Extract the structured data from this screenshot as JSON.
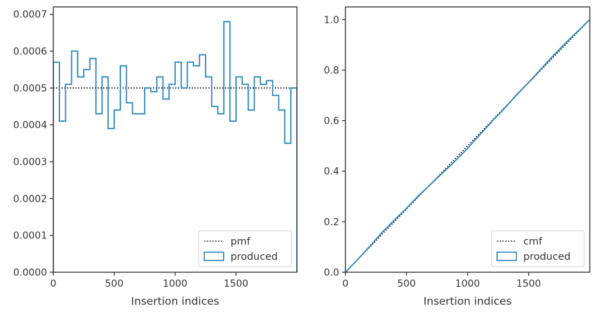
{
  "chart_data": [
    {
      "type": "step",
      "xlabel": "Insertion indices",
      "ylabel": "",
      "xlim": [
        0,
        2000
      ],
      "ylim": [
        0,
        0.00072
      ],
      "xticks": [
        0,
        500,
        1000,
        1500
      ],
      "xtick_labels": [
        "0",
        "500",
        "1000",
        "1500"
      ],
      "yticks": [
        0,
        0.0001,
        0.0002,
        0.0003,
        0.0004,
        0.0005,
        0.0006,
        0.0007
      ],
      "ytick_labels": [
        "0.0000",
        "0.0001",
        "0.0002",
        "0.0003",
        "0.0004",
        "0.0005",
        "0.0006",
        "0.0007"
      ],
      "grid": false,
      "legend": {
        "position": "lower-right",
        "entries": [
          "pmf",
          "produced"
        ]
      },
      "series": [
        {
          "name": "pmf",
          "style": "dotted",
          "color": "#000000",
          "x": [
            0,
            2000
          ],
          "y": [
            0.0005,
            0.0005
          ]
        },
        {
          "name": "produced",
          "style": "histogram-step",
          "color": "#2e86b8",
          "bin_width": 50,
          "bin_edges_start": 0,
          "values": [
            0.00057,
            0.00041,
            0.00051,
            0.0006,
            0.00053,
            0.00055,
            0.00058,
            0.00043,
            0.00053,
            0.00039,
            0.00044,
            0.00056,
            0.00046,
            0.00043,
            0.00043,
            0.0005,
            0.00049,
            0.00053,
            0.00047,
            0.00051,
            0.00057,
            0.0005,
            0.00057,
            0.00056,
            0.00059,
            0.00053,
            0.00045,
            0.00043,
            0.00068,
            0.00041,
            0.00053,
            0.00051,
            0.00044,
            0.00053,
            0.00051,
            0.00052,
            0.00048,
            0.00044,
            0.00035,
            0.0005
          ]
        }
      ]
    },
    {
      "type": "line",
      "xlabel": "Insertion indices",
      "ylabel": "",
      "xlim": [
        0,
        2000
      ],
      "ylim": [
        0,
        1.05
      ],
      "xticks": [
        0,
        500,
        1000,
        1500
      ],
      "xtick_labels": [
        "0",
        "500",
        "1000",
        "1500"
      ],
      "yticks": [
        0,
        0.2,
        0.4,
        0.6,
        0.8,
        1.0
      ],
      "ytick_labels": [
        "0.0",
        "0.2",
        "0.4",
        "0.6",
        "0.8",
        "1.0"
      ],
      "grid": false,
      "legend": {
        "position": "lower-right",
        "entries": [
          "cmf",
          "produced"
        ]
      },
      "series": [
        {
          "name": "cmf",
          "style": "dotted",
          "color": "#000000",
          "x": [
            0,
            2000
          ],
          "y": [
            0,
            1.0
          ]
        },
        {
          "name": "produced",
          "style": "solid",
          "color": "#2e86b8",
          "x": [
            0,
            100,
            200,
            300,
            400,
            500,
            600,
            700,
            800,
            900,
            1000,
            1100,
            1200,
            1300,
            1400,
            1500,
            1600,
            1700,
            1800,
            1900,
            2000
          ],
          "y": [
            0,
            0.05,
            0.103,
            0.158,
            0.206,
            0.253,
            0.304,
            0.349,
            0.395,
            0.441,
            0.49,
            0.544,
            0.597,
            0.647,
            0.702,
            0.751,
            0.804,
            0.857,
            0.906,
            0.953,
            1.0
          ]
        }
      ]
    }
  ]
}
